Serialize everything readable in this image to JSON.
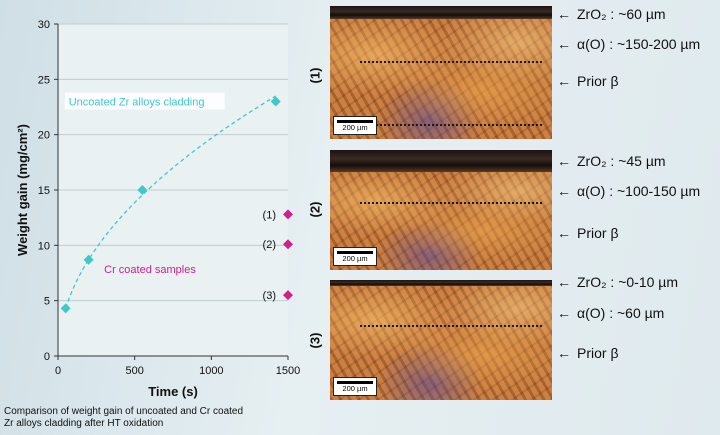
{
  "chart_data": {
    "type": "scatter",
    "xlabel": "Time (s)",
    "ylabel": "Weight gain (mg/cm²)",
    "xlim": [
      0,
      1500
    ],
    "ylim": [
      0,
      30
    ],
    "xticks": [
      0,
      500,
      1000,
      1500
    ],
    "yticks": [
      0,
      5,
      10,
      15,
      20,
      25,
      30
    ],
    "grid": "horizontal",
    "series": [
      {
        "name": "Uncoated Zr alloys cladding",
        "color": "#40c8c8",
        "marker": "diamond",
        "trendline": "dashed",
        "x": [
          50,
          200,
          550,
          1420
        ],
        "y": [
          4.3,
          8.7,
          15.0,
          23.0
        ]
      },
      {
        "name": "Cr coated samples",
        "color": "#d0208c",
        "marker": "diamond",
        "x": [
          1500,
          1500,
          1500
        ],
        "y": [
          12.8,
          10.1,
          5.5
        ],
        "point_labels": [
          "(1)",
          "(2)",
          "(3)"
        ]
      }
    ]
  },
  "caption": "Comparison of weight gain of uncoated and Cr coated Zr alloys cladding after HT oxidation",
  "micrographs": [
    {
      "label": "(1)",
      "scale_bar": "200 µm",
      "annotations": [
        "ZrO₂ : ~60 µm",
        "α(O) : ~150-200 µm",
        "Prior β"
      ]
    },
    {
      "label": "(2)",
      "scale_bar": "200 µm",
      "annotations": [
        "ZrO₂ : ~45 µm",
        "α(O) : ~100-150 µm",
        "Prior β"
      ]
    },
    {
      "label": "(3)",
      "scale_bar": "200 µm",
      "annotations": [
        "ZrO₂ : ~0-10 µm",
        "α(O) : ~60 µm",
        "Prior β"
      ]
    }
  ],
  "arrow_glyph": "←"
}
